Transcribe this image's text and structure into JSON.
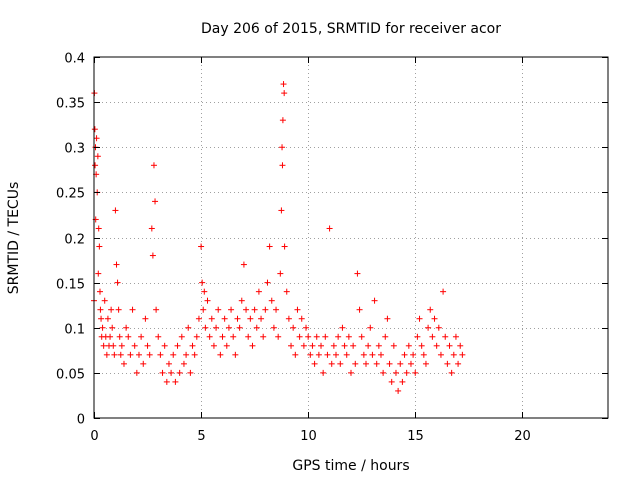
{
  "chart_data": {
    "type": "scatter",
    "title": "Day 206 of 2015, SRMTID for receiver acor",
    "xlabel": "GPS time / hours",
    "ylabel": "SRMTID / TECUs",
    "xlim": [
      0,
      24
    ],
    "ylim": [
      0,
      0.4
    ],
    "x_ticks": [
      0,
      5,
      10,
      15,
      20
    ],
    "x_tick_labels": [
      "0",
      "5",
      "10",
      "15",
      "20"
    ],
    "y_ticks": [
      0,
      0.05,
      0.1,
      0.15,
      0.2,
      0.25,
      0.3,
      0.35,
      0.4
    ],
    "y_tick_labels": [
      "0",
      "0.05",
      "0.1",
      "0.15",
      "0.2",
      "0.25",
      "0.3",
      "0.35",
      "0.4"
    ],
    "grid": true,
    "marker": "+",
    "color": "#ff0000",
    "series": [
      {
        "name": "SRMTID",
        "x": [
          0.0,
          0.02,
          0.04,
          0.05,
          0.07,
          0.08,
          0.1,
          0.12,
          0.15,
          0.18,
          0.2,
          0.22,
          0.25,
          0.28,
          0.3,
          0.33,
          0.36,
          0.4,
          0.45,
          0.5,
          0.55,
          0.6,
          0.65,
          0.7,
          0.75,
          0.8,
          0.85,
          0.9,
          0.95,
          1.0,
          1.05,
          1.1,
          1.15,
          1.2,
          1.25,
          1.3,
          1.4,
          1.5,
          1.6,
          1.7,
          1.8,
          1.9,
          2.0,
          2.1,
          2.2,
          2.3,
          2.4,
          2.5,
          2.6,
          2.7,
          2.75,
          2.8,
          2.85,
          2.9,
          3.0,
          3.1,
          3.2,
          3.3,
          3.4,
          3.5,
          3.6,
          3.7,
          3.8,
          3.9,
          4.0,
          4.1,
          4.2,
          4.3,
          4.4,
          4.5,
          4.6,
          4.7,
          4.8,
          4.9,
          5.0,
          5.05,
          5.1,
          5.15,
          5.2,
          5.3,
          5.4,
          5.5,
          5.6,
          5.7,
          5.8,
          5.9,
          6.0,
          6.1,
          6.2,
          6.3,
          6.4,
          6.5,
          6.6,
          6.7,
          6.8,
          6.9,
          7.0,
          7.1,
          7.2,
          7.3,
          7.4,
          7.5,
          7.6,
          7.7,
          7.8,
          7.9,
          8.0,
          8.1,
          8.2,
          8.3,
          8.4,
          8.5,
          8.6,
          8.7,
          8.75,
          8.78,
          8.8,
          8.82,
          8.85,
          8.88,
          8.9,
          9.0,
          9.1,
          9.2,
          9.3,
          9.4,
          9.5,
          9.6,
          9.7,
          9.8,
          9.9,
          10.0,
          10.1,
          10.2,
          10.3,
          10.4,
          10.5,
          10.6,
          10.7,
          10.8,
          10.9,
          11.0,
          11.1,
          11.2,
          11.3,
          11.4,
          11.5,
          11.6,
          11.7,
          11.8,
          11.9,
          12.0,
          12.1,
          12.2,
          12.3,
          12.4,
          12.5,
          12.6,
          12.7,
          12.8,
          12.9,
          13.0,
          13.1,
          13.2,
          13.3,
          13.4,
          13.5,
          13.6,
          13.7,
          13.8,
          13.9,
          14.0,
          14.1,
          14.2,
          14.3,
          14.4,
          14.5,
          14.6,
          14.7,
          14.8,
          14.9,
          15.0,
          15.1,
          15.2,
          15.3,
          15.4,
          15.5,
          15.6,
          15.7,
          15.8,
          15.9,
          16.0,
          16.1,
          16.2,
          16.3,
          16.4,
          16.5,
          16.6,
          16.7,
          16.8,
          16.9,
          17.0,
          17.1,
          17.2
        ],
        "y": [
          0.13,
          0.36,
          0.32,
          0.28,
          0.3,
          0.22,
          0.27,
          0.31,
          0.25,
          0.29,
          0.16,
          0.21,
          0.19,
          0.14,
          0.12,
          0.11,
          0.09,
          0.1,
          0.08,
          0.13,
          0.09,
          0.07,
          0.11,
          0.08,
          0.09,
          0.12,
          0.1,
          0.08,
          0.07,
          0.23,
          0.17,
          0.15,
          0.12,
          0.09,
          0.07,
          0.08,
          0.06,
          0.1,
          0.09,
          0.07,
          0.12,
          0.08,
          0.05,
          0.07,
          0.09,
          0.06,
          0.11,
          0.08,
          0.07,
          0.21,
          0.18,
          0.28,
          0.24,
          0.12,
          0.09,
          0.07,
          0.05,
          0.08,
          0.04,
          0.06,
          0.05,
          0.07,
          0.04,
          0.08,
          0.05,
          0.09,
          0.06,
          0.07,
          0.1,
          0.05,
          0.08,
          0.07,
          0.09,
          0.11,
          0.19,
          0.15,
          0.12,
          0.14,
          0.1,
          0.13,
          0.09,
          0.11,
          0.08,
          0.1,
          0.12,
          0.07,
          0.09,
          0.11,
          0.08,
          0.1,
          0.12,
          0.09,
          0.07,
          0.11,
          0.1,
          0.13,
          0.17,
          0.12,
          0.09,
          0.11,
          0.08,
          0.12,
          0.1,
          0.14,
          0.11,
          0.09,
          0.12,
          0.15,
          0.19,
          0.13,
          0.1,
          0.12,
          0.09,
          0.16,
          0.23,
          0.3,
          0.28,
          0.33,
          0.37,
          0.36,
          0.19,
          0.14,
          0.11,
          0.08,
          0.1,
          0.07,
          0.12,
          0.09,
          0.11,
          0.08,
          0.1,
          0.09,
          0.07,
          0.08,
          0.06,
          0.09,
          0.07,
          0.08,
          0.05,
          0.09,
          0.07,
          0.21,
          0.06,
          0.08,
          0.07,
          0.09,
          0.06,
          0.1,
          0.08,
          0.07,
          0.09,
          0.05,
          0.08,
          0.06,
          0.16,
          0.12,
          0.09,
          0.07,
          0.06,
          0.08,
          0.1,
          0.07,
          0.13,
          0.06,
          0.08,
          0.07,
          0.05,
          0.09,
          0.11,
          0.06,
          0.04,
          0.08,
          0.05,
          0.03,
          0.06,
          0.04,
          0.07,
          0.05,
          0.08,
          0.06,
          0.07,
          0.05,
          0.09,
          0.11,
          0.08,
          0.07,
          0.06,
          0.1,
          0.12,
          0.09,
          0.11,
          0.08,
          0.1,
          0.07,
          0.14,
          0.09,
          0.06,
          0.08,
          0.05,
          0.07,
          0.09,
          0.06,
          0.08,
          0.07
        ]
      }
    ]
  }
}
